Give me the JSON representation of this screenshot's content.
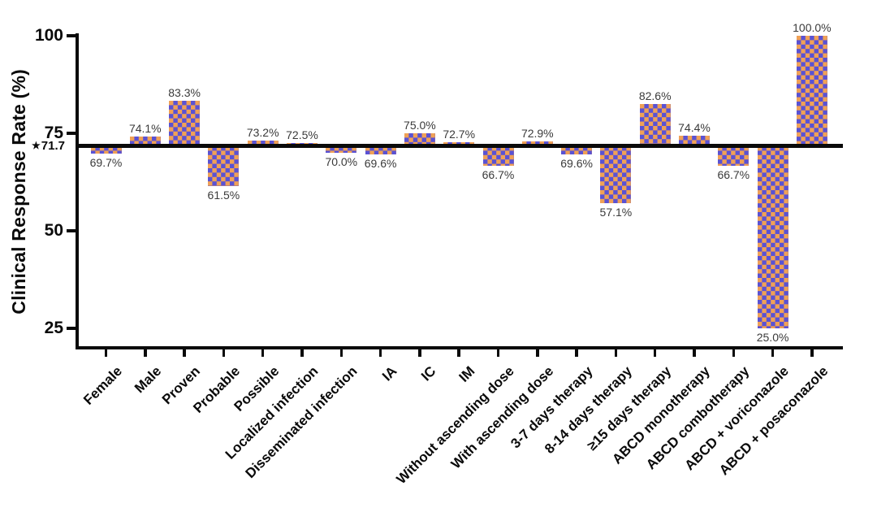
{
  "chart_data": {
    "type": "bar",
    "title": "",
    "ylabel": "Clinical Response Rate (%)",
    "xlabel": "",
    "ylim": [
      20,
      100
    ],
    "yticks": [
      100,
      75,
      50,
      25
    ],
    "grid": false,
    "legend": null,
    "baseline": {
      "value": 71.7,
      "marker": "★",
      "text": "71.7"
    },
    "bar_style": {
      "pattern": "checkerboard",
      "orange": "#f0a156",
      "purple": "#5a52d4",
      "axis_color": "#0a0a0a",
      "value_label_color": "#3a3a3a"
    },
    "categories": [
      "Female",
      "Male",
      "Proven",
      "Probable",
      "Possible",
      "Localized infection",
      "Disseminated infection",
      "IA",
      "IC",
      "IM",
      "Without ascending dose",
      "With ascending dose",
      "3-7 days therapy",
      "8-14 days therapy",
      "≥15 days therapy",
      "ABCD monotherapy",
      "ABCD combotherapy",
      "ABCD + voriconazole",
      "ABCD + posaconazole"
    ],
    "values": [
      69.7,
      74.1,
      83.3,
      61.5,
      73.2,
      72.5,
      70.0,
      69.6,
      75.0,
      72.7,
      66.7,
      72.9,
      69.6,
      57.1,
      82.6,
      74.4,
      66.7,
      25.0,
      100.0
    ],
    "value_labels": [
      "69.7%",
      "74.1%",
      "83.3%",
      "61.5%",
      "73.2%",
      "72.5%",
      "70.0%",
      "69.6%",
      "75.0%",
      "72.7%",
      "66.7%",
      "72.9%",
      "69.6%",
      "57.1%",
      "82.6%",
      "74.4%",
      "66.7%",
      "25.0%",
      "100.0%"
    ]
  }
}
